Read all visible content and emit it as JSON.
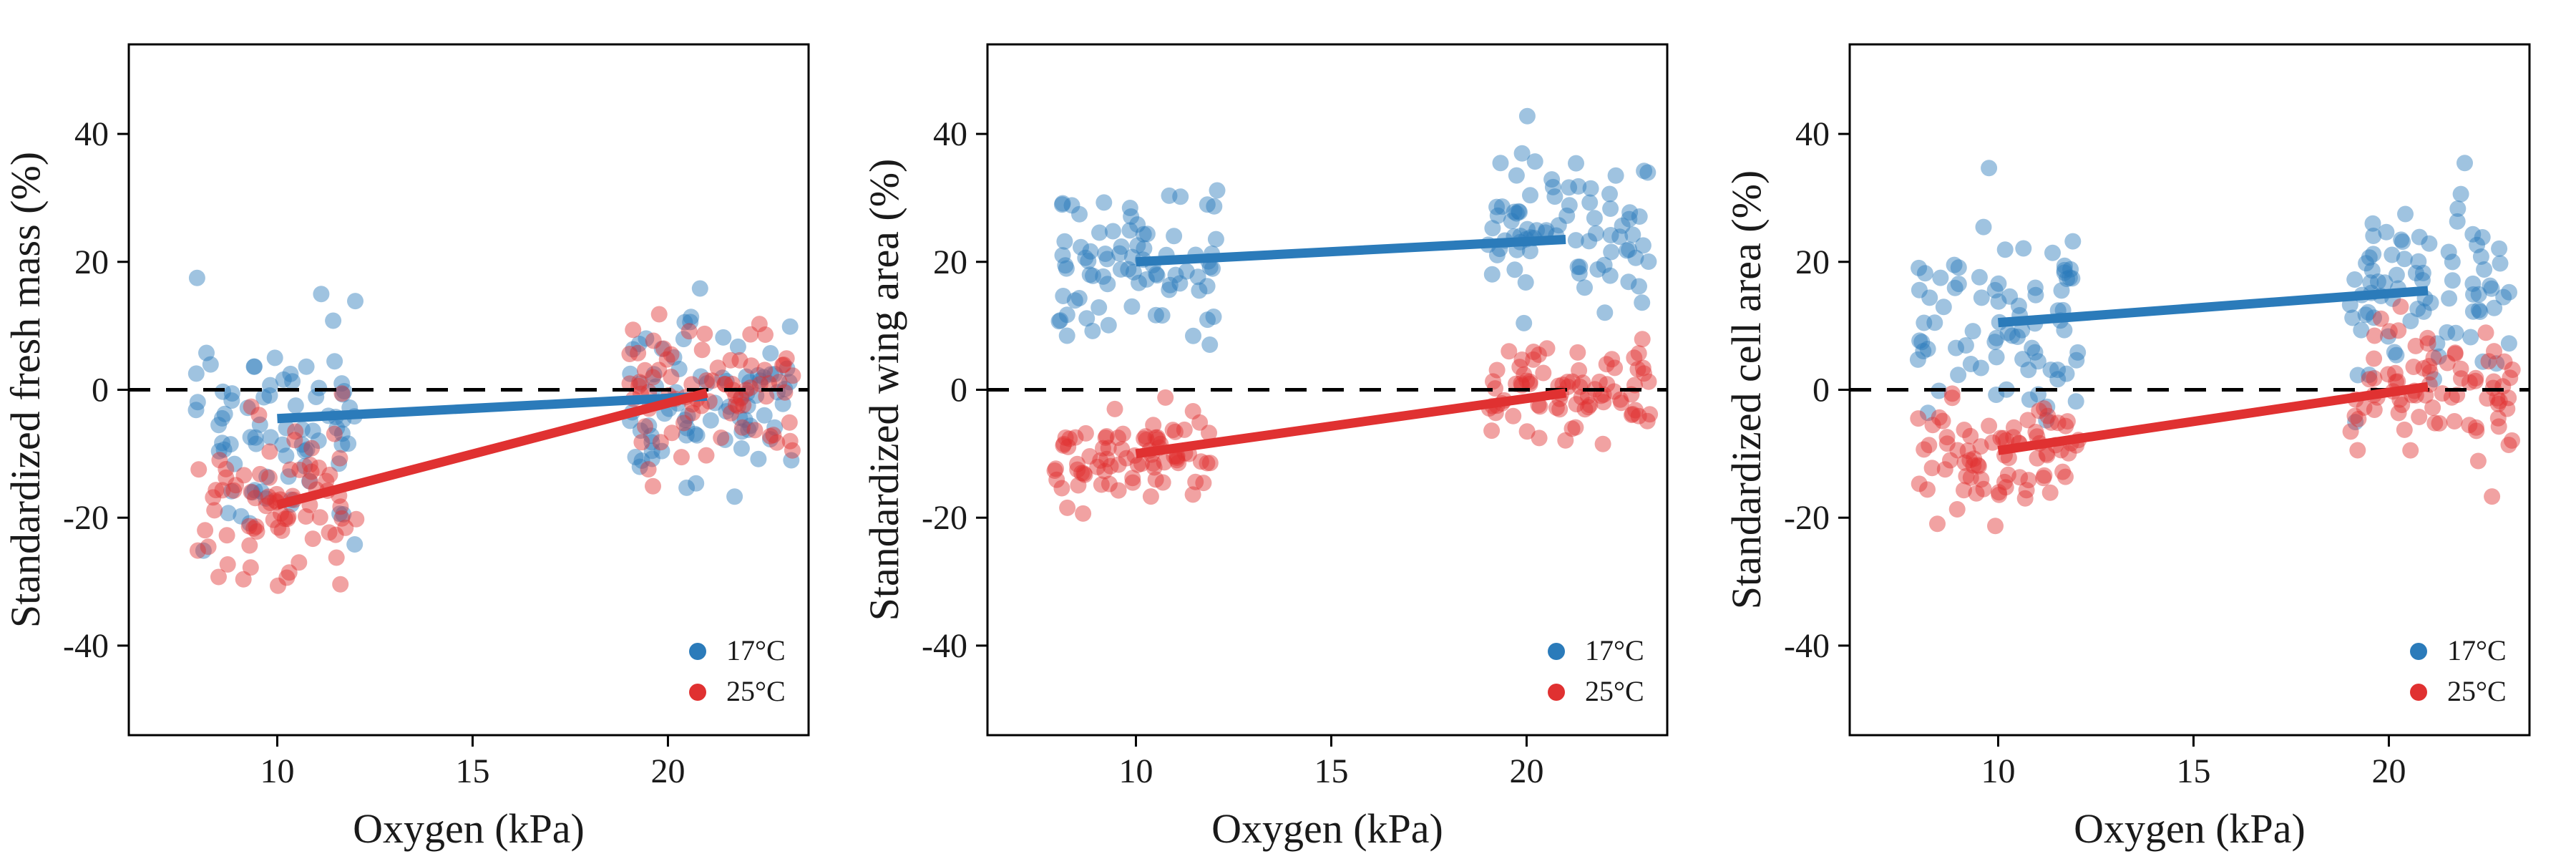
{
  "figure": {
    "background": "#ffffff"
  },
  "chart_data": [
    {
      "type": "scatter",
      "panel": "fresh-mass",
      "xlabel": "Oxygen (kPa)",
      "ylabel": "Standardized fresh mass (%)",
      "xlim": [
        6.2,
        23.6
      ],
      "ylim": [
        -54,
        54
      ],
      "xticks": [
        10,
        15,
        20
      ],
      "yticks": [
        -40,
        -20,
        0,
        20,
        40
      ],
      "reference_line": {
        "y": 0,
        "style": "dashed"
      },
      "legend": {
        "position": "bottom-right",
        "entries": [
          "17°C",
          "25°C"
        ]
      },
      "series": [
        {
          "name": "17°C",
          "color": "#2b7bba",
          "groups": [
            {
              "x_range": [
                7.9,
                12.1
              ],
              "mean": -4,
              "sd": 8.5,
              "n": 80
            },
            {
              "x_range": [
                19.0,
                23.2
              ],
              "mean": -1.5,
              "sd": 8.0,
              "n": 80
            }
          ],
          "fit": {
            "x": [
              10,
              21
            ],
            "y": [
              -4.5,
              -1.0
            ]
          }
        },
        {
          "name": "25°C",
          "color": "#e03131",
          "groups": [
            {
              "x_range": [
                7.9,
                12.1
              ],
              "mean": -17,
              "sd": 6.0,
              "n": 80
            },
            {
              "x_range": [
                19.0,
                23.2
              ],
              "mean": 0,
              "sd": 6.0,
              "n": 80
            }
          ],
          "fit": {
            "x": [
              10,
              21
            ],
            "y": [
              -18,
              -0.5
            ]
          }
        }
      ]
    },
    {
      "type": "scatter",
      "panel": "wing-area",
      "xlabel": "Oxygen (kPa)",
      "ylabel": "Standardized wing area (%)",
      "xlim": [
        6.2,
        23.6
      ],
      "ylim": [
        -54,
        54
      ],
      "xticks": [
        10,
        15,
        20
      ],
      "yticks": [
        -40,
        -20,
        0,
        20,
        40
      ],
      "reference_line": {
        "y": 0,
        "style": "dashed"
      },
      "legend": {
        "position": "bottom-right",
        "entries": [
          "17°C",
          "25°C"
        ]
      },
      "series": [
        {
          "name": "17°C",
          "color": "#2b7bba",
          "groups": [
            {
              "x_range": [
                7.9,
                12.1
              ],
              "mean": 20,
              "sd": 6.0,
              "n": 80
            },
            {
              "x_range": [
                19.0,
                23.2
              ],
              "mean": 24,
              "sd": 5.5,
              "n": 80
            }
          ],
          "fit": {
            "x": [
              10,
              21
            ],
            "y": [
              20,
              23.5
            ]
          }
        },
        {
          "name": "25°C",
          "color": "#e03131",
          "groups": [
            {
              "x_range": [
                7.9,
                12.1
              ],
              "mean": -10,
              "sd": 4.0,
              "n": 80
            },
            {
              "x_range": [
                19.0,
                23.2
              ],
              "mean": 0,
              "sd": 4.0,
              "n": 80
            }
          ],
          "fit": {
            "x": [
              10,
              21
            ],
            "y": [
              -10,
              -0.5
            ]
          }
        }
      ]
    },
    {
      "type": "scatter",
      "panel": "cell-area",
      "xlabel": "Oxygen (kPa)",
      "ylabel": "Standardized cell area (%)",
      "xlim": [
        6.2,
        23.6
      ],
      "ylim": [
        -54,
        54
      ],
      "xticks": [
        10,
        15,
        20
      ],
      "yticks": [
        -40,
        -20,
        0,
        20,
        40
      ],
      "reference_line": {
        "y": 0,
        "style": "dashed"
      },
      "legend": {
        "position": "bottom-right",
        "entries": [
          "17°C",
          "25°C"
        ]
      },
      "series": [
        {
          "name": "17°C",
          "color": "#2b7bba",
          "groups": [
            {
              "x_range": [
                7.9,
                12.1
              ],
              "mean": 10,
              "sd": 7.5,
              "n": 80
            },
            {
              "x_range": [
                19.0,
                23.2
              ],
              "mean": 15,
              "sd": 7.5,
              "n": 80
            }
          ],
          "fit": {
            "x": [
              10,
              21
            ],
            "y": [
              10.5,
              15.5
            ]
          }
        },
        {
          "name": "25°C",
          "color": "#e03131",
          "groups": [
            {
              "x_range": [
                7.9,
                12.1
              ],
              "mean": -10,
              "sd": 5.0,
              "n": 80
            },
            {
              "x_range": [
                19.0,
                23.2
              ],
              "mean": 0,
              "sd": 5.5,
              "n": 80
            }
          ],
          "fit": {
            "x": [
              10,
              21
            ],
            "y": [
              -9.5,
              0.5
            ]
          }
        }
      ]
    }
  ]
}
